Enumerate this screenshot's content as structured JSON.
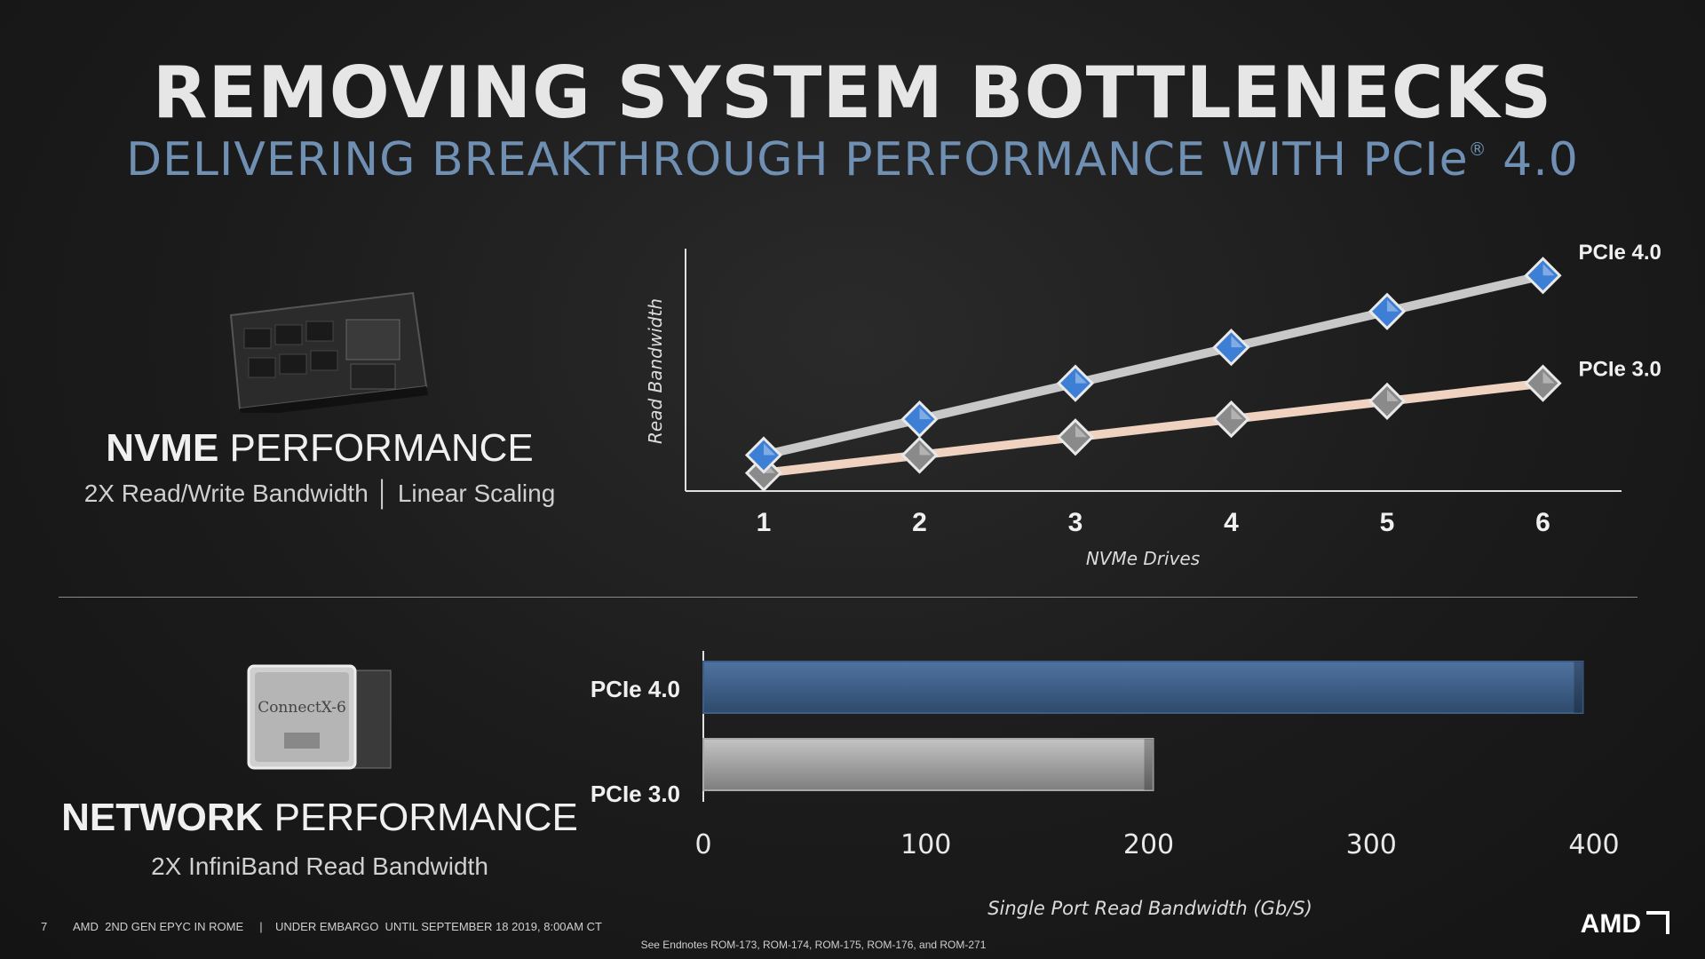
{
  "header": {
    "title": "REMOVING SYSTEM BOTTLENECKS",
    "subtitle_pre": "DELIVERING BREAKTHROUGH PERFORMANCE WITH PCIe",
    "subtitle_sup": "®",
    "subtitle_post": " 4.0"
  },
  "nvme": {
    "heading_bold": "NVME",
    "heading_rest": " PERFORMANCE",
    "subline": "2X Read/Write Bandwidth  │  Linear Scaling"
  },
  "network": {
    "heading_bold": "NETWORK",
    "heading_rest": " PERFORMANCE",
    "subline": "2X InfiniBand Read Bandwidth",
    "chip_label": "ConnectX-6"
  },
  "footer": {
    "page_number": "7",
    "left_text": "AMD  2ND GEN EPYC IN ROME     |    UNDER EMBARGO  UNTIL SEPTEMBER 18 2019, 8:00AM CT",
    "endnotes": "See Endnotes ROM-173, ROM-174, ROM-175, ROM-176,  and ROM-271",
    "logo_text": "AMD"
  },
  "colors": {
    "pcie4_line": "#c8c8c8",
    "pcie3_line": "#f0d2c0",
    "pcie4_marker": "#3c7fd4",
    "pcie3_marker": "#8a8a8a",
    "bar_pcie4": "#3e5f85",
    "bar_pcie3": "#a8a8a8",
    "subtitle": "#6f8fb3"
  },
  "chart_data": [
    {
      "type": "line",
      "xlabel": "NVMe Drives",
      "ylabel": "Read Bandwidth",
      "x": [
        1,
        2,
        3,
        4,
        5,
        6
      ],
      "ylim": [
        0,
        6.5
      ],
      "grid": false,
      "series": [
        {
          "name": "PCIe 4.0",
          "values": [
            1,
            2,
            3,
            4,
            5,
            6
          ]
        },
        {
          "name": "PCIe 3.0",
          "values": [
            0.5,
            1,
            1.5,
            2,
            2.5,
            3
          ]
        }
      ]
    },
    {
      "type": "bar",
      "orientation": "horizontal",
      "categories": [
        "PCIe 4.0",
        "PCIe 3.0"
      ],
      "values": [
        395,
        202
      ],
      "xlabel": "Single Port Read Bandwidth (Gb/S)",
      "xlim": [
        0,
        400
      ],
      "xticks": [
        "0",
        "100",
        "200",
        "300",
        "400"
      ],
      "grid": false
    }
  ]
}
